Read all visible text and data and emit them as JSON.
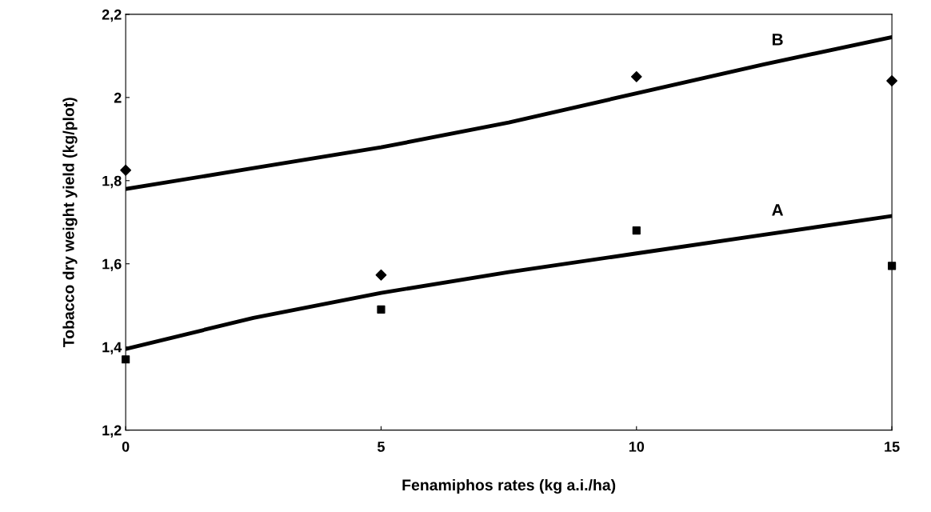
{
  "chart_data": {
    "type": "line",
    "xlabel": "Fenamiphos rates (kg a.i./ha)",
    "ylabel": "Tobacco dry weight yield (kg/plot)",
    "xlim": [
      0,
      15
    ],
    "xticks": [
      0,
      5,
      10,
      15
    ],
    "ylim": [
      1.2,
      2.2
    ],
    "yticks": [
      {
        "value": 1.2,
        "label": "1,2"
      },
      {
        "value": 1.4,
        "label": "1,4"
      },
      {
        "value": 1.6,
        "label": "1,6"
      },
      {
        "value": 1.8,
        "label": "1,8"
      },
      {
        "value": 2,
        "label": "2"
      },
      {
        "value": 2.2,
        "label": "2,2"
      }
    ],
    "grid": false,
    "legend": false,
    "series": [
      {
        "color": "#000000",
        "x": [
          0,
          2.5,
          5,
          7.5,
          10,
          12.5,
          15
        ],
        "values": [
          1.78,
          1.83,
          1.88,
          1.94,
          2.01,
          2.08,
          2.145
        ]
      },
      {
        "color": "#000000",
        "x": [
          0,
          2.5,
          5,
          7.5,
          10,
          12.5,
          15
        ],
        "values": [
          1.395,
          1.47,
          1.53,
          1.58,
          1.625,
          1.67,
          1.715
        ]
      },
      {
        "type": "scatter",
        "color": "#000000",
        "marker": "diamond",
        "x": [
          0,
          5,
          10,
          15
        ],
        "values": [
          1.825,
          1.573,
          2.05,
          2.04
        ]
      },
      {
        "type": "scatter",
        "color": "#000000",
        "marker": "square",
        "x": [
          0,
          5,
          10,
          15
        ],
        "values": [
          1.37,
          1.49,
          1.68,
          1.595
        ]
      }
    ],
    "annotations": [
      "B",
      "A"
    ]
  }
}
